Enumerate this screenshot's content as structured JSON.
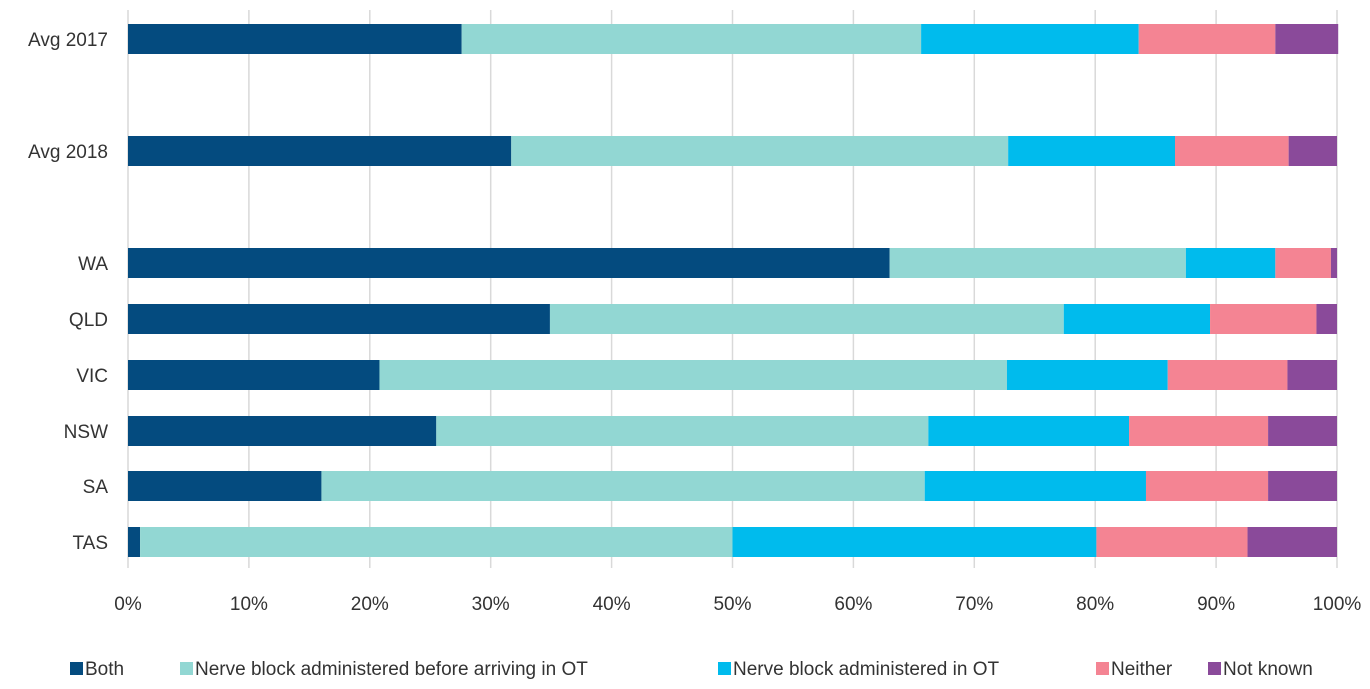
{
  "chart_data": {
    "type": "bar",
    "orientation": "horizontal",
    "stacked": true,
    "categories": [
      "Avg 2017",
      "Avg 2018",
      "WA",
      "QLD",
      "VIC",
      "NSW",
      "SA",
      "TAS"
    ],
    "series": [
      {
        "name": "Both",
        "color": "#044b7f",
        "values": [
          27.6,
          31.7,
          63.0,
          34.9,
          20.8,
          25.5,
          16.0,
          1.0
        ]
      },
      {
        "name": "Nerve block administered before arriving in OT",
        "color": "#92d7d3",
        "values": [
          38.0,
          41.1,
          24.5,
          42.5,
          51.9,
          40.7,
          49.9,
          49.0
        ]
      },
      {
        "name": "Nerve block administered in OT",
        "color": "#00bbed",
        "values": [
          18.0,
          13.8,
          7.4,
          12.1,
          13.3,
          16.6,
          18.3,
          30.1
        ]
      },
      {
        "name": "Neither",
        "color": "#f48493",
        "values": [
          11.3,
          9.4,
          4.6,
          8.8,
          9.9,
          11.5,
          10.1,
          12.5
        ]
      },
      {
        "name": "Not known",
        "color": "#8a4a9a",
        "values": [
          5.2,
          4.0,
          0.5,
          1.7,
          4.1,
          5.7,
          5.7,
          7.4
        ]
      }
    ],
    "x_ticks": [
      "0%",
      "10%",
      "20%",
      "30%",
      "40%",
      "50%",
      "60%",
      "70%",
      "80%",
      "90%",
      "100%"
    ],
    "xlim": [
      0,
      100
    ],
    "grid": true,
    "legend_position": "bottom"
  }
}
